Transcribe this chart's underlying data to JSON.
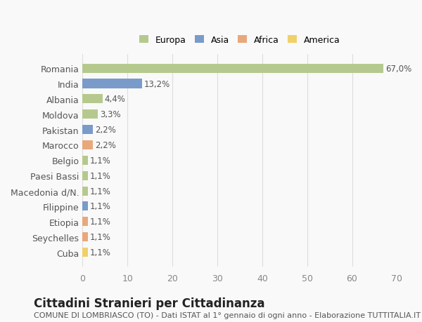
{
  "categories": [
    "Romania",
    "India",
    "Albania",
    "Moldova",
    "Pakistan",
    "Marocco",
    "Belgio",
    "Paesi Bassi",
    "Macedonia d/N.",
    "Filippine",
    "Etiopia",
    "Seychelles",
    "Cuba"
  ],
  "values": [
    67.0,
    13.2,
    4.4,
    3.3,
    2.2,
    2.2,
    1.1,
    1.1,
    1.1,
    1.1,
    1.1,
    1.1,
    1.1
  ],
  "labels": [
    "67,0%",
    "13,2%",
    "4,4%",
    "3,3%",
    "2,2%",
    "2,2%",
    "1,1%",
    "1,1%",
    "1,1%",
    "1,1%",
    "1,1%",
    "1,1%",
    "1,1%"
  ],
  "continents": [
    "Europa",
    "Asia",
    "Europa",
    "Europa",
    "Asia",
    "Africa",
    "Europa",
    "Europa",
    "Europa",
    "Asia",
    "Africa",
    "Africa",
    "America"
  ],
  "continent_colors": {
    "Europa": "#b5c98e",
    "Asia": "#7a9bc9",
    "Africa": "#e8a87c",
    "America": "#f0d06a"
  },
  "legend_order": [
    "Europa",
    "Asia",
    "Africa",
    "America"
  ],
  "xlim": [
    0,
    70
  ],
  "xticks": [
    0,
    10,
    20,
    30,
    40,
    50,
    60,
    70
  ],
  "title": "Cittadini Stranieri per Cittadinanza",
  "subtitle": "COMUNE DI LOMBRIASCO (TO) - Dati ISTAT al 1° gennaio di ogni anno - Elaborazione TUTTITALIA.IT",
  "bg_color": "#f9f9f9",
  "grid_color": "#dddddd",
  "bar_height": 0.6,
  "label_fontsize": 8.5,
  "title_fontsize": 12,
  "subtitle_fontsize": 8
}
